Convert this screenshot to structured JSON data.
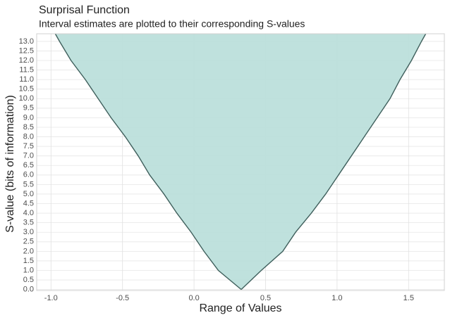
{
  "chart_data": {
    "type": "area",
    "title": "Surprisal Function",
    "subtitle": "Interval estimates are plotted to their corresponding S-values",
    "x_label": "Range of Values",
    "y_label": "S-value (bits of information)",
    "y": [
      0,
      1,
      2,
      3,
      4,
      5,
      6,
      7,
      8,
      9,
      10,
      11,
      12,
      13,
      13.4
    ],
    "lower": [
      0.33,
      0.17,
      0.07,
      -0.02,
      -0.12,
      -0.21,
      -0.31,
      -0.39,
      -0.48,
      -0.58,
      -0.67,
      -0.76,
      -0.86,
      -0.94,
      -0.97
    ],
    "upper": [
      0.33,
      0.47,
      0.62,
      0.71,
      0.82,
      0.92,
      1.01,
      1.1,
      1.19,
      1.28,
      1.37,
      1.44,
      1.52,
      1.59,
      1.62
    ],
    "color": "#bcdfdb",
    "line_color": "#3f5f5c",
    "grid": true,
    "xlim": [
      -1.1,
      1.75
    ],
    "ylim": [
      -0.05,
      13.4
    ],
    "xticks": [
      {
        "value": -1,
        "label": "-1.0"
      },
      -0.5,
      {
        "value": 0,
        "label": "0.0"
      },
      0.5,
      {
        "value": 1,
        "label": "1.0"
      },
      1.5
    ],
    "yticks": [
      {
        "value": 0,
        "label": "0.0"
      },
      0.5,
      {
        "value": 1,
        "label": "1.0"
      },
      1.5,
      {
        "value": 2,
        "label": "2.0"
      },
      2.5,
      {
        "value": 3,
        "label": "3.0"
      },
      3.5,
      {
        "value": 4,
        "label": "4.0"
      },
      4.5,
      {
        "value": 5,
        "label": "5.0"
      },
      5.5,
      {
        "value": 6,
        "label": "6.0"
      },
      6.5,
      {
        "value": 7,
        "label": "7.0"
      },
      7.5,
      {
        "value": 8,
        "label": "8.0"
      },
      8.5,
      {
        "value": 9,
        "label": "9.0"
      },
      9.5,
      {
        "value": 10,
        "label": "10.0"
      },
      10.5,
      {
        "value": 11,
        "label": "11.0"
      },
      11.5,
      {
        "value": 12,
        "label": "12.0"
      },
      12.5,
      {
        "value": 13,
        "label": "13.0"
      }
    ]
  }
}
